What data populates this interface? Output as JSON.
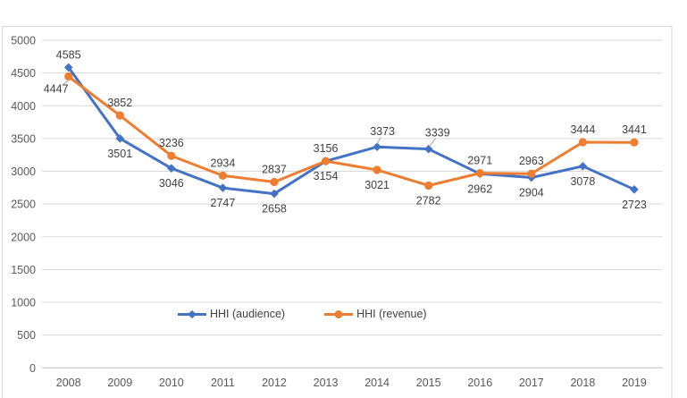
{
  "chart_data": {
    "type": "line",
    "title": "",
    "xlabel": "",
    "ylabel": "",
    "categories": [
      "2008",
      "2009",
      "2010",
      "2011",
      "2012",
      "2013",
      "2014",
      "2015",
      "2016",
      "2017",
      "2018",
      "2019"
    ],
    "series": [
      {
        "name": "HHI (audience)",
        "color": "#4472C4",
        "marker": "diamond",
        "values": [
          4585,
          3501,
          3046,
          2747,
          2658,
          3154,
          3373,
          3339,
          2962,
          2904,
          3078,
          2723
        ],
        "label_side": [
          "above",
          "below",
          "below",
          "below",
          "below",
          "below",
          "above",
          "above",
          "below",
          "below",
          "below",
          "below"
        ]
      },
      {
        "name": "HHI (revenue)",
        "color": "#ED7D31",
        "marker": "circle",
        "values": [
          4447,
          3852,
          3236,
          2934,
          2837,
          3156,
          3021,
          2782,
          2971,
          2963,
          3444,
          3441
        ],
        "label_side": [
          "below-left",
          "above",
          "above",
          "above",
          "above",
          "above",
          "below",
          "below",
          "above",
          "above",
          "above",
          "above"
        ]
      }
    ],
    "ylim": [
      0,
      5000
    ],
    "ytick_step": 500,
    "yticks": [
      "0",
      "500",
      "1000",
      "1500",
      "2000",
      "2500",
      "3000",
      "3500",
      "4000",
      "4500",
      "5000"
    ],
    "grid": true,
    "legend_position": "bottom-center-inside",
    "data_labels_shown": true
  },
  "colors": {
    "audience_line": "#4472C4",
    "revenue_line": "#ED7D31",
    "gridline": "#D9D9D9",
    "axis_line": "#BFBFBF",
    "tick_text": "#595959",
    "data_label_text": "#404040",
    "leader_line": "#A6A6A6",
    "chart_border": "#D9D9D9",
    "background": "#FFFFFF"
  }
}
